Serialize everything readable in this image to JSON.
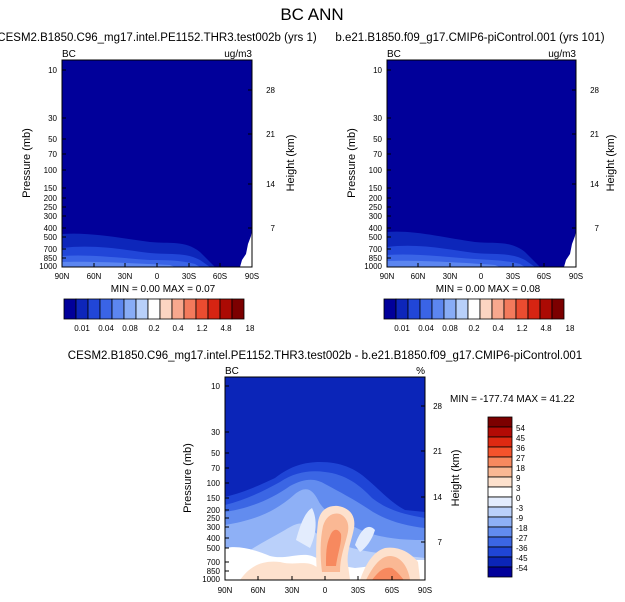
{
  "figure": {
    "title": "BC ANN"
  },
  "chart_data": [
    {
      "type": "heatmap",
      "title": "CESM2.B1850.C96_mg17.intel.PE1152.THR3.test002b (yrs 1)",
      "left_label": "BC",
      "units": "ug/m3",
      "ylabel": "Pressure (mb)",
      "ylabel_right": "Height (km)",
      "x_ticks": [
        "90N",
        "60N",
        "30N",
        "0",
        "30S",
        "60S",
        "90S"
      ],
      "y_ticks": [
        "10",
        "30",
        "50",
        "70",
        "100",
        "150",
        "200",
        "250",
        "300",
        "400",
        "500",
        "700",
        "850",
        "1000"
      ],
      "height_ticks": [
        "28",
        "21",
        "14",
        "7"
      ],
      "ylim": [
        1000,
        10
      ],
      "y_scale": "log",
      "stats": "MIN =  0.00  MAX =  0.07",
      "colorbar": {
        "orientation": "horizontal",
        "labels": [
          "0.01",
          "0.04",
          "0.08",
          "0.2",
          "0.4",
          "1.2",
          "4.8",
          "18"
        ]
      }
    },
    {
      "type": "heatmap",
      "title": "b.e21.B1850.f09_g17.CMIP6-piControl.001 (yrs 101)",
      "left_label": "BC",
      "units": "ug/m3",
      "ylabel": "Pressure (mb)",
      "ylabel_right": "Height (km)",
      "x_ticks": [
        "90N",
        "60N",
        "30N",
        "0",
        "30S",
        "60S",
        "90S"
      ],
      "y_ticks": [
        "10",
        "30",
        "50",
        "70",
        "100",
        "150",
        "200",
        "250",
        "300",
        "400",
        "500",
        "700",
        "850",
        "1000"
      ],
      "height_ticks": [
        "28",
        "21",
        "14",
        "7"
      ],
      "ylim": [
        1000,
        10
      ],
      "y_scale": "log",
      "stats": "MIN =  0.00  MAX =  0.08",
      "colorbar": {
        "orientation": "horizontal",
        "labels": [
          "0.01",
          "0.04",
          "0.08",
          "0.2",
          "0.4",
          "1.2",
          "4.8",
          "18"
        ]
      }
    },
    {
      "type": "heatmap",
      "title": "CESM2.B1850.C96_mg17.intel.PE1152.THR3.test002b - b.e21.B1850.f09_g17.CMIP6-piControl.001",
      "left_label": "BC",
      "units": "%",
      "ylabel": "Pressure (mb)",
      "ylabel_right": "Height (km)",
      "x_ticks": [
        "90N",
        "60N",
        "30N",
        "0",
        "30S",
        "60S",
        "90S"
      ],
      "y_ticks": [
        "10",
        "30",
        "50",
        "70",
        "100",
        "150",
        "200",
        "250",
        "300",
        "400",
        "500",
        "700",
        "850",
        "1000"
      ],
      "height_ticks": [
        "28",
        "21",
        "14",
        "7"
      ],
      "ylim": [
        1000,
        10
      ],
      "y_scale": "log",
      "stats": "MIN = -177.74  MAX = 41.22",
      "colorbar": {
        "orientation": "vertical",
        "labels": [
          "54",
          "45",
          "36",
          "27",
          "18",
          "9",
          "3",
          "0",
          "-3",
          "-9",
          "-18",
          "-27",
          "-36",
          "-45",
          "-54"
        ]
      }
    }
  ],
  "colors": {
    "seq": [
      "#01009a",
      "#0d26ba",
      "#2146d8",
      "#3a64e6",
      "#5c86f0",
      "#88acf6",
      "#b8d0fa",
      "#ffffff",
      "#fcd5c2",
      "#f8a88e",
      "#f37a5c",
      "#ea4c30",
      "#d62412",
      "#ab0a04",
      "#7c0000"
    ],
    "div": [
      "#7c0000",
      "#b30b05",
      "#de2a12",
      "#f4532c",
      "#f7895f",
      "#fab894",
      "#fde1cd",
      "#ffffff",
      "#e3ecfd",
      "#bad0fa",
      "#8eb0f6",
      "#628cef",
      "#3b66e4",
      "#1f45d6",
      "#0b25b8",
      "#01009a"
    ],
    "panel_bg": "#1a2fc6"
  }
}
